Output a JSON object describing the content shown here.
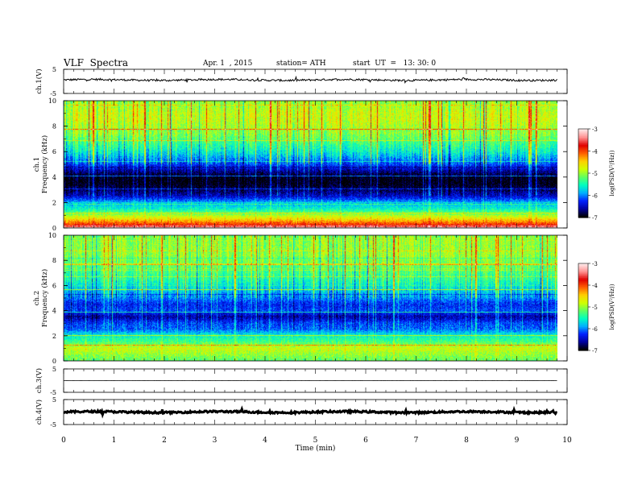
{
  "header": {
    "title": "VLF  Spectra",
    "date": "Apr. 1  , 2015",
    "station": "station= ATH",
    "start": "start  UT  =   13: 30: 0"
  },
  "colors": {
    "colormap": [
      "#000000",
      "#0000a0",
      "#0020ff",
      "#00b0ff",
      "#00ffc0",
      "#60ff60",
      "#d0ff00",
      "#ffd000",
      "#ff6000",
      "#e00000",
      "#ff9090",
      "#ffe8e8"
    ]
  },
  "chart_data": [
    {
      "type": "line",
      "name": "ch1-waveform",
      "ylabel": "ch.1(V)",
      "yticks": [
        "5",
        "-5"
      ],
      "ylim": [
        -5,
        5
      ],
      "xlim": [
        0,
        9.8
      ],
      "approx_level": 0.6,
      "approx_noise": 0.4
    },
    {
      "type": "heatmap",
      "name": "ch1-spectrogram",
      "ylabel": "ch.1\nFrequency  (kHz)",
      "yticks": [
        "10",
        "8",
        "6",
        "4",
        "2",
        "0"
      ],
      "ylim": [
        0,
        10
      ],
      "xlim": [
        0,
        9.8
      ],
      "colorbar": {
        "label": "log(PSD(V²/Hz))",
        "ticks": [
          "-3",
          "-4",
          "-5",
          "-6",
          "-7"
        ],
        "range": [
          -7,
          -3
        ]
      },
      "freq_profile_khz": [
        0,
        0.5,
        1.0,
        1.5,
        2.0,
        2.5,
        3.0,
        3.5,
        4.0,
        4.5,
        5.0,
        5.5,
        6.0,
        6.5,
        7.0,
        7.5,
        8.0,
        8.5,
        9.0,
        9.5,
        10.0
      ],
      "freq_profile_logpsd": [
        -3.5,
        -4.3,
        -5.0,
        -5.6,
        -5.9,
        -6.5,
        -6.8,
        -7.0,
        -7.0,
        -6.6,
        -6.2,
        -5.9,
        -5.6,
        -5.4,
        -5.2,
        -5.0,
        -4.9,
        -4.8,
        -4.8,
        -4.9,
        -5.0
      ]
    },
    {
      "type": "heatmap",
      "name": "ch2-spectrogram",
      "ylabel": "ch.2\nFrequency  (kHz)",
      "yticks": [
        "10",
        "8",
        "6",
        "4",
        "2",
        "0"
      ],
      "ylim": [
        0,
        10
      ],
      "xlim": [
        0,
        9.8
      ],
      "colorbar": {
        "label": "log(PSD(V²/Hz))",
        "ticks": [
          "-3",
          "-4",
          "-5",
          "-6",
          "-7"
        ],
        "range": [
          -7,
          -3
        ]
      },
      "freq_profile_khz": [
        0,
        0.5,
        1.0,
        1.5,
        2.0,
        2.5,
        3.0,
        3.5,
        4.0,
        4.5,
        5.0,
        5.5,
        6.0,
        6.5,
        7.0,
        7.5,
        8.0,
        8.5,
        9.0,
        9.5,
        10.0
      ],
      "freq_profile_logpsd": [
        -5.2,
        -5.0,
        -4.8,
        -5.3,
        -5.6,
        -6.1,
        -6.2,
        -6.6,
        -6.2,
        -6.3,
        -6.0,
        -5.8,
        -5.6,
        -5.4,
        -5.3,
        -5.2,
        -5.1,
        -5.0,
        -5.0,
        -5.0,
        -5.1
      ]
    },
    {
      "type": "line",
      "name": "ch3-waveform",
      "ylabel": "ch.3(V)",
      "yticks": [
        "5",
        "-5"
      ],
      "ylim": [
        -5,
        5
      ],
      "xlim": [
        0,
        9.8
      ],
      "approx_level": 0.0,
      "approx_noise": 0.05
    },
    {
      "type": "line",
      "name": "ch4-waveform",
      "ylabel": "ch.4(V)",
      "yticks": [
        "5",
        "-5"
      ],
      "ylim": [
        -5,
        5
      ],
      "xlim": [
        0,
        9.8
      ],
      "approx_level": 0.0,
      "approx_noise": 0.35
    }
  ],
  "xaxis": {
    "label": "Time  (min)",
    "ticks": [
      "0",
      "1",
      "2",
      "3",
      "4",
      "5",
      "6",
      "7",
      "8",
      "9",
      "10"
    ],
    "range": [
      0,
      10
    ]
  }
}
